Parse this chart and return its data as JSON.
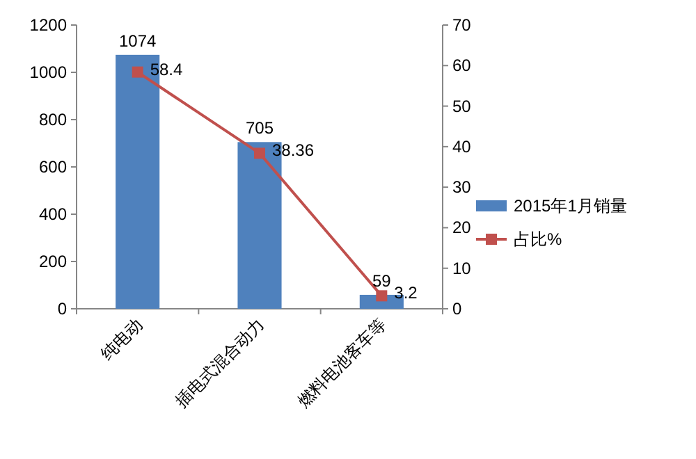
{
  "chart_data": {
    "type": "bar",
    "categories": [
      "纯电动",
      "插电式混合动力",
      "燃料电池客车等"
    ],
    "series": [
      {
        "name": "2015年1月销量",
        "color": "#4f81bd",
        "values": [
          1074,
          705,
          59
        ]
      },
      {
        "name": "占比%",
        "type": "line",
        "axis": "y2",
        "color": "#c0504d",
        "values": [
          58.4,
          38.36,
          3.2
        ]
      }
    ],
    "ylim": [
      0,
      1200
    ],
    "yticks": [
      0,
      200,
      400,
      600,
      800,
      1000,
      1200
    ],
    "y2lim": [
      0,
      70
    ],
    "y2ticks": [
      0,
      10,
      20,
      30,
      40,
      50,
      60,
      70
    ],
    "marker": "square",
    "line_style": "solid",
    "data_labels": true,
    "legend": "right",
    "grid": false
  }
}
